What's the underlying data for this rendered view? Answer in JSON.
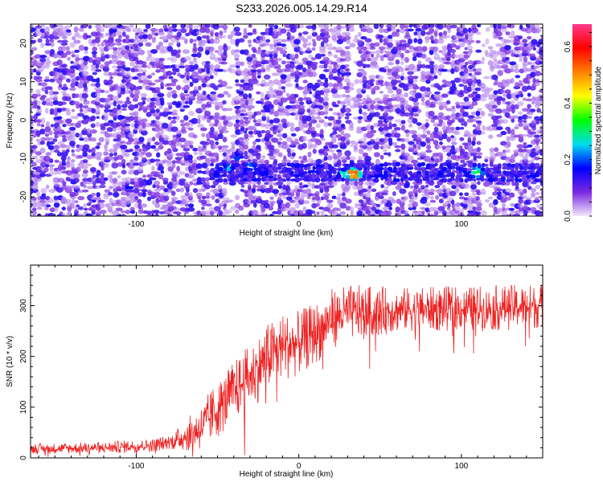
{
  "title": "S233.2026.005.14.29.R14",
  "chart_data": [
    {
      "type": "heatmap",
      "title": "S233.2026.005.14.29.R14",
      "xlabel": "Height of straight line (km)",
      "ylabel": "Frequency (Hz)",
      "xlim": [
        -165,
        150
      ],
      "ylim": [
        -25,
        25
      ],
      "x_ticks": [
        -100,
        0,
        100
      ],
      "y_ticks": [
        -20,
        -10,
        0,
        10,
        20
      ],
      "colorbar": {
        "label": "Normalized spectral amplitude",
        "range": [
          0,
          0.68
        ],
        "ticks": [
          0.0,
          0.2,
          0.4,
          0.6
        ],
        "colormap": [
          "#f2e8fb",
          "#7a28e0",
          "#0000ff",
          "#00ddee",
          "#00ff00",
          "#ffff00",
          "#ff8000",
          "#ff0000",
          "#ff3a8a"
        ]
      },
      "band": {
        "frequency_hz": -13.5,
        "feature": "persistent spectral line from about -50 km to 150 km"
      },
      "peaks": [
        {
          "x": -43,
          "y": -12.5,
          "value": 0.25
        },
        {
          "x": -37,
          "y": -9.5,
          "value": 0.2
        },
        {
          "x": -29,
          "y": -12,
          "value": 0.22
        },
        {
          "x": 28,
          "y": -14,
          "value": 0.3
        },
        {
          "x": 34,
          "y": -14,
          "value": 0.6
        },
        {
          "x": 110,
          "y": -13.5,
          "value": 0.35
        },
        {
          "x": 104,
          "y": -14,
          "value": 0.2
        },
        {
          "x": -104,
          "y": -17.5,
          "value": 0.18
        }
      ]
    },
    {
      "type": "line",
      "xlabel": "Height of straight line (km)",
      "ylabel": "SNR (10 * v/v)",
      "xlim": [
        -165,
        150
      ],
      "ylim": [
        0,
        380
      ],
      "x_ticks": [
        -100,
        0,
        100
      ],
      "y_ticks": [
        0,
        100,
        200,
        300
      ],
      "color": "#ee2222",
      "trend": [
        {
          "x": -165,
          "y": 18
        },
        {
          "x": -120,
          "y": 20
        },
        {
          "x": -90,
          "y": 25
        },
        {
          "x": -75,
          "y": 35
        },
        {
          "x": -60,
          "y": 60
        },
        {
          "x": -50,
          "y": 95
        },
        {
          "x": -40,
          "y": 130
        },
        {
          "x": -30,
          "y": 160
        },
        {
          "x": -20,
          "y": 195
        },
        {
          "x": -10,
          "y": 220
        },
        {
          "x": 0,
          "y": 225
        },
        {
          "x": 10,
          "y": 245
        },
        {
          "x": 20,
          "y": 275
        },
        {
          "x": 30,
          "y": 285
        },
        {
          "x": 50,
          "y": 290
        },
        {
          "x": 80,
          "y": 293
        },
        {
          "x": 120,
          "y": 295
        },
        {
          "x": 150,
          "y": 300
        }
      ],
      "noise_amplitude": [
        {
          "x": -165,
          "a": 10
        },
        {
          "x": -80,
          "a": 14
        },
        {
          "x": -55,
          "a": 55
        },
        {
          "x": -20,
          "a": 70
        },
        {
          "x": 20,
          "a": 60
        },
        {
          "x": 60,
          "a": 45
        },
        {
          "x": 150,
          "a": 45
        }
      ]
    }
  ]
}
